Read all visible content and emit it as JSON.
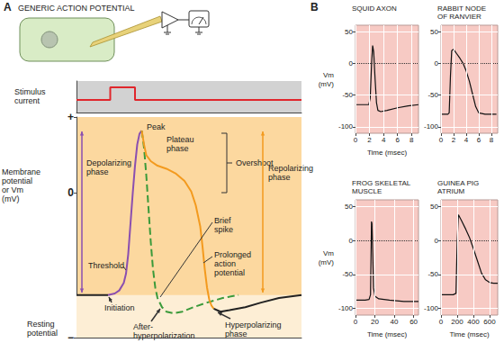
{
  "chart_data": [
    {
      "type": "line",
      "panel": "A",
      "title": "GENERIC ACTION POTENTIAL",
      "ylabel": "Stimulus current",
      "xlim": [
        0,
        100
      ],
      "ylim": [
        -1,
        1.5
      ],
      "tick_labels": false,
      "series": [
        {
          "x": [
            0,
            15,
            15,
            26,
            26,
            100
          ],
          "values": [
            0,
            0,
            1,
            1,
            0,
            0
          ],
          "color": "#e0262c",
          "line_style": "solid"
        }
      ]
    },
    {
      "type": "line",
      "ylabel": "Membrane potential or Vm (mV)",
      "xlim": [
        0,
        100
      ],
      "ylim": [
        -95,
        50
      ],
      "yticks": [
        {
          "value": 50,
          "label": "+"
        },
        0,
        {
          "value": -95,
          "label": "−"
        }
      ],
      "tick_labels": "y",
      "annotations": [
        "Peak",
        "Plateau phase",
        "Overshoot",
        "Depolarizing phase",
        "Repolarizing phase",
        "Threshold",
        "Brief spike",
        "Prolonged action potential",
        "Initiation",
        "After-hyperpolarization",
        "Hyperpolarizing phase",
        "Resting potential"
      ],
      "series": [
        {
          "x": [
            0,
            14
          ],
          "values": [
            -67,
            -67
          ],
          "color": "#222222",
          "line_style": "solid"
        },
        {
          "x": [
            14,
            17,
            19,
            21,
            22,
            23,
            24,
            25,
            26,
            27,
            28,
            29
          ],
          "values": [
            -67,
            -66,
            -64,
            -59,
            -53,
            -40,
            -20,
            0,
            18,
            32,
            39,
            41
          ],
          "color": "#8a4fb0",
          "line_style": "solid"
        },
        {
          "x": [
            29,
            30,
            31,
            32,
            33,
            34,
            35,
            36,
            38,
            40,
            43,
            47,
            52,
            58,
            65,
            72
          ],
          "values": [
            41,
            30,
            12,
            -10,
            -32,
            -50,
            -62,
            -69,
            -75,
            -78,
            -79,
            -78,
            -75,
            -72,
            -69,
            -67
          ],
          "color": "#3a9a3a",
          "line_style": "dashed"
        },
        {
          "x": [
            29,
            30,
            31,
            33,
            36,
            40,
            44,
            48,
            51,
            53,
            55,
            56,
            57,
            58,
            59,
            60,
            61
          ],
          "values": [
            41,
            32,
            25,
            21,
            18,
            16,
            13,
            8,
            1,
            -8,
            -22,
            -35,
            -50,
            -62,
            -70,
            -74,
            -76
          ],
          "color": "#f39a1e",
          "line_style": "solid"
        },
        {
          "x": [
            61,
            64,
            68,
            75,
            82,
            90,
            100
          ],
          "values": [
            -76,
            -78,
            -77,
            -75,
            -72,
            -69,
            -67
          ],
          "color": "#222222",
          "line_style": "solid"
        }
      ]
    },
    {
      "type": "line",
      "panel": "B",
      "title": "SQUID AXON",
      "xlabel": "Time (msec)",
      "ylabel": "Vm (mV)",
      "xlim": [
        0,
        9
      ],
      "xticks": [
        0,
        2,
        4,
        6,
        8
      ],
      "ylim": [
        -110,
        60
      ],
      "yticks": [
        -100,
        -50,
        0,
        50
      ],
      "grid": true,
      "series": [
        {
          "x": [
            0,
            1.9,
            2.1,
            2.3,
            2.45,
            2.6,
            2.8,
            3.0,
            3.2,
            3.6,
            4.5,
            6,
            7.5,
            9
          ],
          "values": [
            -65,
            -65,
            -55,
            0,
            28,
            18,
            -25,
            -62,
            -74,
            -76,
            -74,
            -70,
            -67,
            -65
          ],
          "color": "#111111"
        }
      ]
    },
    {
      "type": "line",
      "title": "RABBIT NODE OF RANVIER",
      "xlim": [
        0,
        9
      ],
      "xticks": [
        0,
        2,
        4,
        6,
        8
      ],
      "ylim": [
        -110,
        60
      ],
      "yticks": [
        -100,
        -50,
        0,
        50
      ],
      "grid": true,
      "series": [
        {
          "x": [
            0,
            1.1,
            1.3,
            1.5,
            1.7,
            2.0,
            2.5,
            3.0,
            3.5,
            4.0,
            4.5,
            5.0,
            5.5,
            6.0,
            7,
            8.8
          ],
          "values": [
            -80,
            -80,
            -78,
            -20,
            20,
            22,
            15,
            8,
            0,
            -12,
            -28,
            -48,
            -68,
            -78,
            -80,
            -80
          ],
          "color": "#111111"
        }
      ]
    },
    {
      "type": "line",
      "title": "FROG SKELETAL MUSCLE",
      "xlabel": "Time (msec)",
      "ylabel": "Vm (mV)",
      "xlim": [
        0,
        65
      ],
      "xticks": [
        0,
        20,
        40,
        60
      ],
      "ylim": [
        -110,
        60
      ],
      "yticks": [
        -100,
        -50,
        0,
        50
      ],
      "grid": true,
      "series": [
        {
          "x": [
            0,
            10,
            14,
            15.5,
            16.5,
            17,
            17.8,
            18.6,
            20,
            24,
            35,
            50,
            65
          ],
          "values": [
            -88,
            -88,
            -87,
            -80,
            28,
            25,
            -20,
            -70,
            -82,
            -86,
            -88,
            -90,
            -90
          ],
          "color": "#111111"
        }
      ]
    },
    {
      "type": "line",
      "title": "GUINEA PIG ATRIUM",
      "xlabel": "Time (msec)",
      "xlim": [
        0,
        700
      ],
      "xticks": [
        0,
        200,
        400,
        600
      ],
      "ylim": [
        -110,
        60
      ],
      "yticks": [
        -100,
        -50,
        0,
        50
      ],
      "grid": true,
      "series": [
        {
          "x": [
            0,
            150,
            185,
            200,
            215,
            250,
            300,
            350,
            400,
            450,
            500,
            550,
            600,
            650,
            700
          ],
          "values": [
            -80,
            -80,
            -78,
            0,
            38,
            30,
            18,
            5,
            -12,
            -30,
            -48,
            -58,
            -62,
            -63,
            -63
          ],
          "color": "#111111"
        }
      ]
    }
  ]
}
